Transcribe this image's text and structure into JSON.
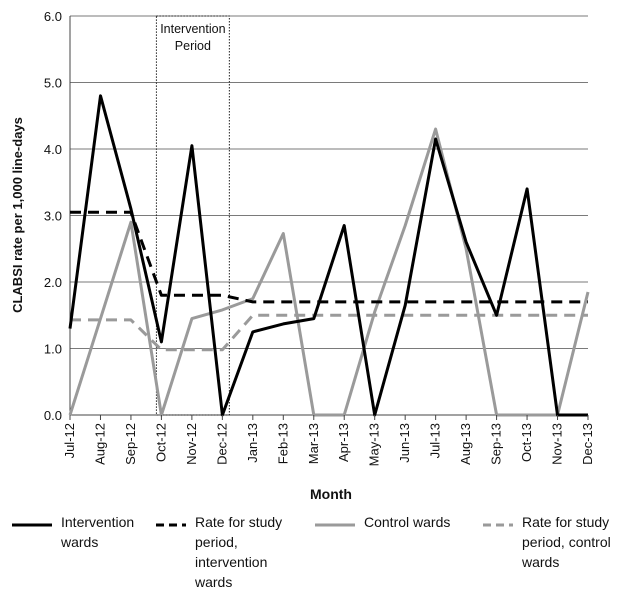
{
  "chart_data": {
    "type": "line",
    "title": "",
    "xlabel": "Month",
    "ylabel": "CLABSI rate per 1,000 line-days",
    "ylim": [
      0,
      6
    ],
    "y_ticks": [
      "0.0",
      "1.0",
      "2.0",
      "3.0",
      "4.0",
      "5.0",
      "6.0"
    ],
    "grid": "horizontal",
    "legend_position": "bottom",
    "categories": [
      "Jul-12",
      "Aug-12",
      "Sep-12",
      "Oct-12",
      "Nov-12",
      "Dec-12",
      "Jan-13",
      "Feb-13",
      "Mar-13",
      "Apr-13",
      "May-13",
      "Jun-13",
      "Jul-13",
      "Aug-13",
      "Sep-13",
      "Oct-13",
      "Nov-13",
      "Dec-13"
    ],
    "annotation": {
      "text_line1": "Intervention",
      "text_line2": "Period",
      "x_start": "Oct-12",
      "x_end": "Dec-12"
    },
    "series": [
      {
        "name": "Intervention wards",
        "color": "#000000",
        "dashed": false,
        "x": [
          0,
          1,
          2,
          3,
          4,
          5,
          6,
          7,
          8,
          9,
          10,
          11,
          12,
          13,
          14,
          15,
          16,
          17
        ],
        "values": [
          1.3,
          4.8,
          3.1,
          1.1,
          4.05,
          0.0,
          1.25,
          1.37,
          1.45,
          2.85,
          0.0,
          1.65,
          4.15,
          2.6,
          1.5,
          3.4,
          0.0,
          0.0
        ]
      },
      {
        "name": "Rate for study period, intervention wards",
        "color": "#000000",
        "dashed": true,
        "x": [
          0,
          2,
          3,
          3,
          5,
          6,
          17
        ],
        "values": [
          3.05,
          3.05,
          1.8,
          1.8,
          1.8,
          1.7,
          1.7
        ]
      },
      {
        "name": "Control wards",
        "color": "#9a9a9a",
        "dashed": false,
        "x": [
          0,
          1,
          2,
          3,
          4,
          5,
          6,
          7,
          8,
          9,
          10,
          11,
          12,
          13,
          14,
          15,
          16,
          17
        ],
        "values": [
          0.0,
          1.45,
          2.9,
          0.0,
          1.45,
          1.58,
          1.75,
          2.73,
          0.0,
          0.0,
          1.55,
          2.85,
          4.3,
          2.5,
          0.0,
          0.0,
          0.0,
          1.85
        ]
      },
      {
        "name": "Rate for study period, control wards",
        "color": "#9a9a9a",
        "dashed": true,
        "x": [
          0,
          2,
          3,
          3,
          5,
          6,
          17
        ],
        "values": [
          1.43,
          1.43,
          0.98,
          0.98,
          0.98,
          1.5,
          1.5
        ]
      }
    ]
  },
  "legend": [
    {
      "label": "Intervention\nwards"
    },
    {
      "label": "Rate for study\nperiod,\nintervention\nwards"
    },
    {
      "label": "Control wards"
    },
    {
      "label": "Rate for study\nperiod, control\nwards"
    }
  ]
}
